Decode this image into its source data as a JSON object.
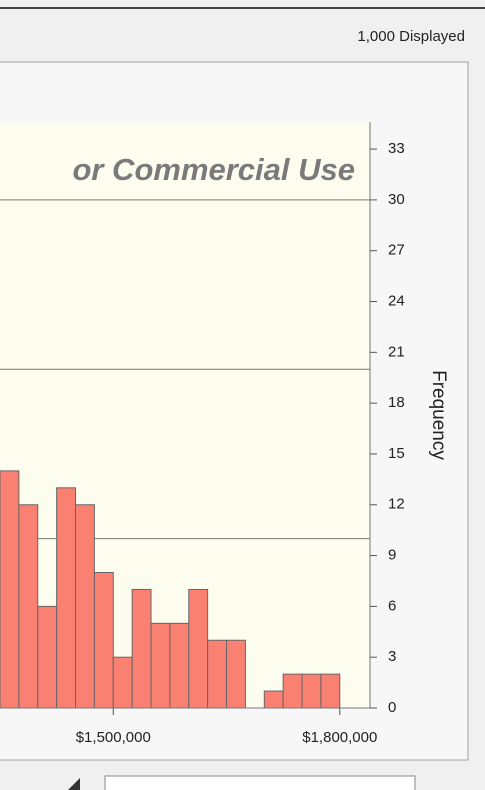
{
  "status": {
    "displayed": "1,000 Displayed"
  },
  "chart_data": {
    "type": "histogram",
    "title": "or Commercial Use",
    "y_label": "Frequency",
    "bins": [
      1350000,
      1375000,
      1400000,
      1425000,
      1450000,
      1475000,
      1500000,
      1525000,
      1550000,
      1575000,
      1600000,
      1625000,
      1650000,
      1675000,
      1700000,
      1725000,
      1750000,
      1775000,
      1800000
    ],
    "counts": [
      14,
      12,
      6,
      13,
      12,
      8,
      3,
      7,
      5,
      5,
      7,
      4,
      4,
      0,
      1,
      2,
      2,
      2
    ],
    "color": "#fa8072",
    "xlim": [
      1350000,
      1840000
    ],
    "xticks": [
      {
        "value": 1500000,
        "label": "$1,500,000"
      },
      {
        "value": 1800000,
        "label": "$1,800,000"
      }
    ],
    "ylim": [
      0,
      34.6
    ],
    "yticks": [
      0,
      3,
      6,
      9,
      12,
      15,
      18,
      21,
      24,
      27,
      30,
      33
    ],
    "ygrid": [
      10,
      20,
      30
    ],
    "y_axis_side": "right"
  }
}
